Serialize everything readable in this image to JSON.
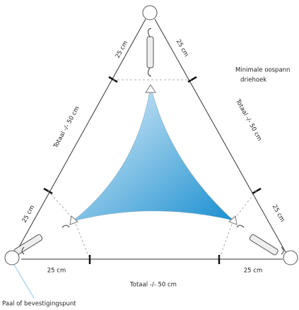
{
  "labels": {
    "left_top": "25 cm",
    "left_total": "Totaal -/- 50 cm",
    "left_bottom": "25 cm",
    "right_top": "25 cm",
    "right_total": "Totaal -/- 50 cm",
    "right_bottom": "25 cm",
    "bottom_left": "25 cm",
    "bottom_total": "Totaal -/- 50 cm",
    "bottom_right": "25 cm",
    "note_line1": "Minimale oospann",
    "note_line2": "driehoek",
    "post": "Paal of bevestigingspunt"
  }
}
